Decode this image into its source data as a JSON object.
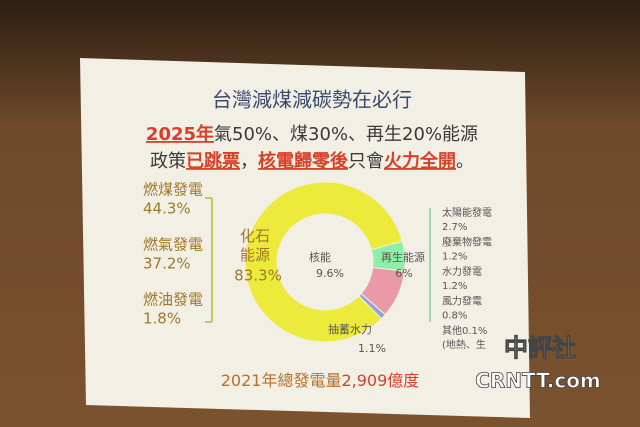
{
  "chart_data": {
    "type": "pie",
    "donut": true,
    "title": "台灣減煤減碳勢在必行",
    "headline": [
      [
        {
          "text": "2025年",
          "color": "#d8402a",
          "underline": true
        },
        {
          "text": "氣50%、煤30%、再生20%能源",
          "color": "#3a3a3a",
          "underline": false
        }
      ],
      [
        {
          "text": "政策",
          "color": "#3a3a3a",
          "underline": false
        },
        {
          "text": "已跳票",
          "color": "#d8402a",
          "underline": true
        },
        {
          "text": "，",
          "color": "#3a3a3a",
          "underline": false
        },
        {
          "text": "核電歸零後",
          "color": "#d8402a",
          "underline": true
        },
        {
          "text": "只會",
          "color": "#3a3a3a",
          "underline": false
        },
        {
          "text": "火力全開",
          "color": "#d8402a",
          "underline": true
        },
        {
          "text": "。",
          "color": "#3a3a3a",
          "underline": false
        }
      ]
    ],
    "categories": [
      "再生能源",
      "核能",
      "抽蓄水力",
      "化石能源"
    ],
    "values": [
      6,
      9.6,
      1.1,
      83.3
    ],
    "value_labels": [
      "6%",
      "9.6%",
      "1.1%",
      "83.3%"
    ],
    "colors": [
      "#8ef0a6",
      "#e89aa6",
      "#8fa3d8",
      "#ecea3a"
    ],
    "fossil_breakdown": [
      {
        "label": "燃煤發電",
        "value_label": "44.3%"
      },
      {
        "label": "燃氣發電",
        "value_label": "37.2%"
      },
      {
        "label": "燃油發電",
        "value_label": "1.8%"
      }
    ],
    "renewable_breakdown": [
      {
        "label": "太陽能發電",
        "value_label": "2.7%"
      },
      {
        "label": "廢棄物發電",
        "value_label": "1.2%"
      },
      {
        "label": "水力發電",
        "value_label": "1.2%"
      },
      {
        "label": "風力發電",
        "value_label": "0.8%"
      },
      {
        "label": "其他0.1%",
        "value_label": "(地熱、生"
      }
    ],
    "footer": [
      {
        "text": "2021年總發電量",
        "color": "#b8702a"
      },
      {
        "text": "2,909億度",
        "color": "#d8402a"
      }
    ],
    "watermark": [
      "中評社",
      "CRNTT.com"
    ]
  }
}
